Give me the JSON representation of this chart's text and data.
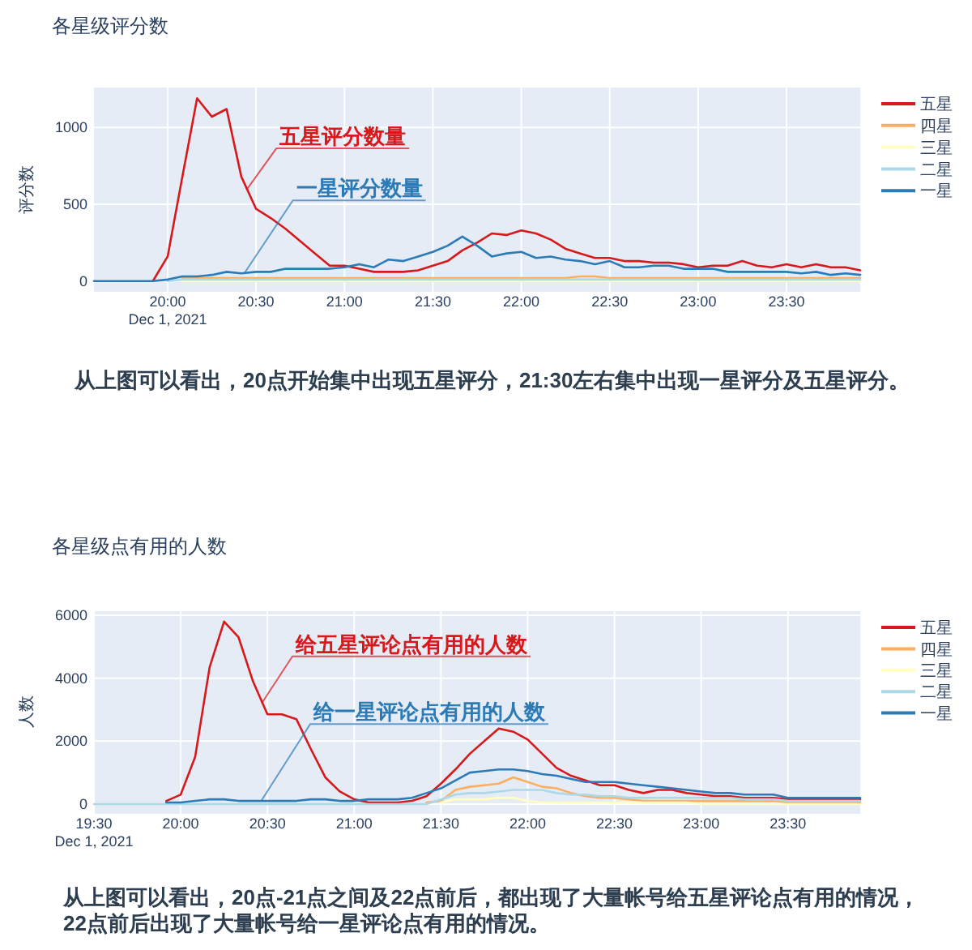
{
  "chart_data": [
    {
      "type": "line",
      "title": "各星级评分数",
      "ylabel": "评分数",
      "x": [
        "2021-12-01T19:35",
        "2021-12-01T19:40",
        "2021-12-01T19:45",
        "2021-12-01T19:50",
        "2021-12-01T19:55",
        "2021-12-01T20:00",
        "2021-12-01T20:05",
        "2021-12-01T20:10",
        "2021-12-01T20:15",
        "2021-12-01T20:20",
        "2021-12-01T20:25",
        "2021-12-01T20:30",
        "2021-12-01T20:35",
        "2021-12-01T20:40",
        "2021-12-01T20:45",
        "2021-12-01T20:50",
        "2021-12-01T20:55",
        "2021-12-01T21:00",
        "2021-12-01T21:05",
        "2021-12-01T21:10",
        "2021-12-01T21:15",
        "2021-12-01T21:20",
        "2021-12-01T21:25",
        "2021-12-01T21:30",
        "2021-12-01T21:35",
        "2021-12-01T21:40",
        "2021-12-01T21:45",
        "2021-12-01T21:50",
        "2021-12-01T21:55",
        "2021-12-01T22:00",
        "2021-12-01T22:05",
        "2021-12-01T22:10",
        "2021-12-01T22:15",
        "2021-12-01T22:20",
        "2021-12-01T22:25",
        "2021-12-01T22:30",
        "2021-12-01T22:35",
        "2021-12-01T22:40",
        "2021-12-01T22:45",
        "2021-12-01T22:50",
        "2021-12-01T22:55",
        "2021-12-01T23:00",
        "2021-12-01T23:05",
        "2021-12-01T23:10",
        "2021-12-01T23:15",
        "2021-12-01T23:20",
        "2021-12-01T23:25",
        "2021-12-01T23:30",
        "2021-12-01T23:35",
        "2021-12-01T23:40",
        "2021-12-01T23:45",
        "2021-12-01T23:50",
        "2021-12-01T23:55"
      ],
      "series": [
        {
          "name": "五星",
          "color": "#d7191c",
          "values": [
            null,
            null,
            null,
            null,
            0,
            160,
            680,
            1190,
            1070,
            1120,
            680,
            470,
            410,
            340,
            260,
            180,
            100,
            100,
            80,
            60,
            60,
            60,
            70,
            100,
            130,
            200,
            250,
            310,
            300,
            330,
            310,
            270,
            210,
            180,
            150,
            150,
            130,
            130,
            120,
            120,
            110,
            90,
            100,
            100,
            130,
            100,
            90,
            110,
            90,
            110,
            90,
            90,
            70
          ]
        },
        {
          "name": "四星",
          "color": "#fdae61",
          "values": [
            null,
            null,
            null,
            null,
            null,
            null,
            20,
            20,
            20,
            20,
            20,
            20,
            20,
            20,
            20,
            20,
            20,
            20,
            20,
            20,
            20,
            20,
            20,
            20,
            20,
            20,
            20,
            20,
            20,
            20,
            20,
            20,
            20,
            30,
            30,
            20,
            20,
            20,
            20,
            20,
            20,
            20,
            20,
            20,
            20,
            20,
            20,
            20,
            20,
            20,
            20,
            20,
            20
          ]
        },
        {
          "name": "三星",
          "color": "#ffffbf",
          "values": [
            null,
            null,
            null,
            null,
            null,
            null,
            0,
            0,
            0,
            0,
            0,
            0,
            0,
            0,
            0,
            0,
            0,
            0,
            0,
            0,
            0,
            0,
            0,
            0,
            0,
            0,
            0,
            0,
            0,
            0,
            0,
            0,
            0,
            0,
            0,
            0,
            0,
            0,
            0,
            0,
            0,
            0,
            0,
            0,
            0,
            0,
            0,
            0,
            0,
            0,
            0,
            0,
            0
          ]
        },
        {
          "name": "二星",
          "color": "#abd9e9",
          "values": [
            null,
            null,
            null,
            null,
            null,
            0,
            10,
            10,
            10,
            10,
            10,
            10,
            10,
            10,
            10,
            10,
            10,
            10,
            10,
            10,
            10,
            10,
            10,
            10,
            10,
            10,
            10,
            10,
            10,
            10,
            10,
            10,
            10,
            10,
            10,
            10,
            10,
            10,
            10,
            10,
            10,
            10,
            10,
            10,
            10,
            10,
            10,
            10,
            10,
            10,
            10,
            10,
            10
          ]
        },
        {
          "name": "一星",
          "color": "#2c7bb6",
          "values": [
            0,
            0,
            0,
            0,
            0,
            10,
            30,
            30,
            40,
            60,
            50,
            60,
            60,
            80,
            80,
            80,
            80,
            90,
            110,
            90,
            140,
            130,
            160,
            190,
            230,
            290,
            230,
            160,
            180,
            190,
            150,
            160,
            140,
            130,
            110,
            130,
            90,
            90,
            100,
            100,
            80,
            80,
            80,
            60,
            60,
            60,
            60,
            60,
            50,
            60,
            40,
            50,
            40
          ]
        }
      ],
      "xlim": [
        "2021-12-01T19:35",
        "2021-12-01T23:55"
      ],
      "xticks": [
        {
          "value": "2021-12-01T20:00",
          "label": "20:00\nDec 1, 2021"
        },
        {
          "value": "2021-12-01T20:30",
          "label": "20:30"
        },
        {
          "value": "2021-12-01T21:00",
          "label": "21:00"
        },
        {
          "value": "2021-12-01T21:30",
          "label": "21:30"
        },
        {
          "value": "2021-12-01T22:00",
          "label": "22:00"
        },
        {
          "value": "2021-12-01T22:30",
          "label": "22:30"
        },
        {
          "value": "2021-12-01T23:00",
          "label": "23:00"
        },
        {
          "value": "2021-12-01T23:30",
          "label": "23:30"
        }
      ],
      "ylim": [
        -70,
        1260
      ],
      "yticks": [
        0,
        500,
        1000
      ],
      "grid": true,
      "legend": "right",
      "annotations": [
        {
          "text": "五星评分数量",
          "x": "2021-12-01T20:27",
          "y": 600
        },
        {
          "text": "一星评分数量",
          "x": "2021-12-01T20:26",
          "y": 50
        },
        "从上图可以看出，20点开始集中出现五星评分，21:30左右集中出现一星评分及五星评分。"
      ]
    },
    {
      "type": "line",
      "title": "各星级点有用的人数",
      "ylabel": "人数",
      "x": [
        "2021-12-01T19:30",
        "2021-12-01T19:35",
        "2021-12-01T19:40",
        "2021-12-01T19:45",
        "2021-12-01T19:50",
        "2021-12-01T19:55",
        "2021-12-01T20:00",
        "2021-12-01T20:05",
        "2021-12-01T20:10",
        "2021-12-01T20:15",
        "2021-12-01T20:20",
        "2021-12-01T20:25",
        "2021-12-01T20:30",
        "2021-12-01T20:35",
        "2021-12-01T20:40",
        "2021-12-01T20:45",
        "2021-12-01T20:50",
        "2021-12-01T20:55",
        "2021-12-01T21:00",
        "2021-12-01T21:05",
        "2021-12-01T21:10",
        "2021-12-01T21:15",
        "2021-12-01T21:20",
        "2021-12-01T21:25",
        "2021-12-01T21:30",
        "2021-12-01T21:35",
        "2021-12-01T21:40",
        "2021-12-01T21:45",
        "2021-12-01T21:50",
        "2021-12-01T21:55",
        "2021-12-01T22:00",
        "2021-12-01T22:05",
        "2021-12-01T22:10",
        "2021-12-01T22:15",
        "2021-12-01T22:20",
        "2021-12-01T22:25",
        "2021-12-01T22:30",
        "2021-12-01T22:35",
        "2021-12-01T22:40",
        "2021-12-01T22:45",
        "2021-12-01T22:50",
        "2021-12-01T22:55",
        "2021-12-01T23:00",
        "2021-12-01T23:05",
        "2021-12-01T23:10",
        "2021-12-01T23:15",
        "2021-12-01T23:20",
        "2021-12-01T23:25",
        "2021-12-01T23:30",
        "2021-12-01T23:35",
        "2021-12-01T23:40",
        "2021-12-01T23:45",
        "2021-12-01T23:50",
        "2021-12-01T23:55"
      ],
      "series": [
        {
          "name": "五星",
          "color": "#d7191c",
          "values": [
            null,
            null,
            null,
            null,
            null,
            100,
            300,
            1500,
            4350,
            5800,
            5300,
            3900,
            2850,
            2850,
            2700,
            1750,
            850,
            400,
            150,
            50,
            50,
            50,
            100,
            250,
            650,
            1100,
            1600,
            2000,
            2400,
            2300,
            2050,
            1600,
            1150,
            900,
            750,
            600,
            600,
            450,
            350,
            450,
            450,
            350,
            300,
            250,
            250,
            200,
            200,
            200,
            150,
            150,
            150,
            150,
            150,
            150
          ]
        },
        {
          "name": "四星",
          "color": "#fdae61",
          "values": [
            null,
            null,
            null,
            null,
            null,
            null,
            null,
            null,
            null,
            null,
            null,
            null,
            null,
            null,
            null,
            null,
            null,
            null,
            null,
            null,
            null,
            null,
            null,
            50,
            100,
            450,
            550,
            600,
            650,
            850,
            700,
            550,
            500,
            350,
            250,
            200,
            200,
            150,
            100,
            100,
            100,
            100,
            100,
            100,
            100,
            100,
            100,
            100,
            50,
            50,
            50,
            50,
            50,
            50
          ]
        },
        {
          "name": "三星",
          "color": "#ffffbf",
          "values": [
            null,
            null,
            null,
            null,
            null,
            null,
            null,
            null,
            null,
            null,
            null,
            null,
            null,
            null,
            null,
            null,
            null,
            null,
            null,
            null,
            null,
            null,
            null,
            null,
            50,
            150,
            150,
            150,
            200,
            200,
            100,
            50,
            50,
            50,
            50,
            50,
            50,
            50,
            50,
            50,
            50,
            50,
            0,
            0,
            0,
            0,
            0,
            0,
            0,
            0,
            0,
            0,
            0,
            0
          ]
        },
        {
          "name": "二星",
          "color": "#abd9e9",
          "values": [
            0,
            0,
            0,
            0,
            0,
            0,
            0,
            0,
            0,
            0,
            0,
            0,
            0,
            0,
            0,
            0,
            0,
            0,
            0,
            0,
            0,
            0,
            0,
            0,
            150,
            300,
            350,
            350,
            400,
            450,
            450,
            450,
            350,
            300,
            300,
            250,
            250,
            200,
            200,
            200,
            200,
            200,
            200,
            200,
            200,
            150,
            150,
            150,
            100,
            100,
            100,
            100,
            100,
            100
          ]
        },
        {
          "name": "一星",
          "color": "#2c7bb6",
          "values": [
            null,
            null,
            null,
            null,
            null,
            50,
            50,
            100,
            150,
            150,
            100,
            100,
            100,
            100,
            100,
            150,
            150,
            100,
            100,
            150,
            150,
            150,
            200,
            350,
            500,
            750,
            1000,
            1050,
            1100,
            1100,
            1050,
            950,
            900,
            800,
            700,
            700,
            700,
            650,
            600,
            550,
            500,
            450,
            400,
            350,
            350,
            300,
            300,
            300,
            200,
            200,
            200,
            200,
            200,
            200
          ]
        }
      ],
      "xlim": [
        "2021-12-01T19:30",
        "2021-12-01T23:55"
      ],
      "xticks": [
        {
          "value": "2021-12-01T19:30",
          "label": "19:30\nDec 1, 2021"
        },
        {
          "value": "2021-12-01T20:00",
          "label": "20:00"
        },
        {
          "value": "2021-12-01T20:30",
          "label": "20:30"
        },
        {
          "value": "2021-12-01T21:00",
          "label": "21:00"
        },
        {
          "value": "2021-12-01T21:30",
          "label": "21:30"
        },
        {
          "value": "2021-12-01T22:00",
          "label": "22:00"
        },
        {
          "value": "2021-12-01T22:30",
          "label": "22:30"
        },
        {
          "value": "2021-12-01T23:00",
          "label": "23:00"
        },
        {
          "value": "2021-12-01T23:30",
          "label": "23:30"
        }
      ],
      "ylim": [
        -310,
        6130
      ],
      "yticks": [
        0,
        2000,
        4000,
        6000
      ],
      "grid": true,
      "legend": "right",
      "annotations": [
        {
          "text": "给五星评论点有用的人数",
          "x": "2021-12-01T20:28",
          "y": 3200
        },
        {
          "text": "给一星评论点有用的人数",
          "x": "2021-12-01T20:28",
          "y": 120
        },
        "从上图可以看出，20点-21点之间及22点前后，都出现了大量帐号给五星评论点有用的情况，22点前后出现了大量帐号给一星评论点有用的情况。"
      ]
    }
  ]
}
